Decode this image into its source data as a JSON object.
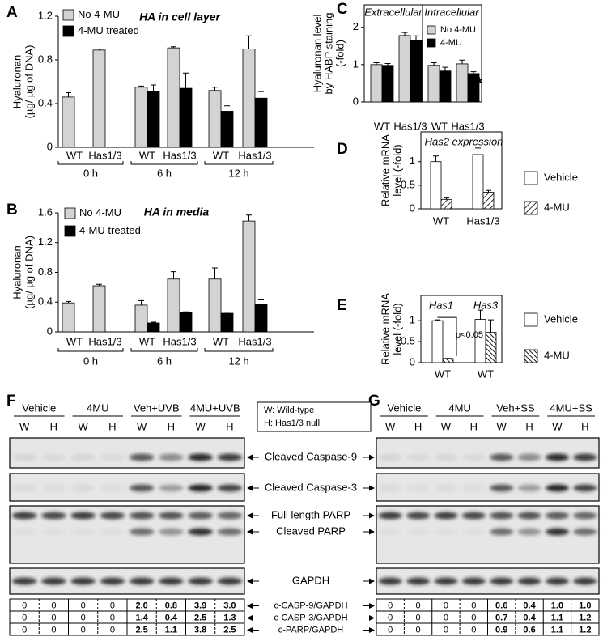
{
  "chart_data": [
    {
      "panel": "A",
      "type": "bar",
      "ylabel": [
        "Hyaluronan",
        "(µg/ µg of DNA)"
      ],
      "annotations": [
        "HA in cell layer"
      ],
      "categories": [
        "WT",
        "Has1/3",
        "WT",
        "Has1/3",
        "WT",
        "Has1/3"
      ],
      "groups": [
        "0 h",
        "6 h",
        "12 h"
      ],
      "series": [
        {
          "name": "No 4-MU",
          "color": "#d3d3d3",
          "values": [
            0.46,
            0.89,
            0.55,
            0.91,
            0.52,
            0.9
          ],
          "errors": [
            0.04,
            0.01,
            0.01,
            0.01,
            0.03,
            0.12
          ]
        },
        {
          "name": "4-MU treated",
          "color": "#000000",
          "values": [
            null,
            null,
            0.51,
            0.54,
            0.33,
            0.45
          ],
          "errors": [
            null,
            null,
            0.06,
            0.14,
            0.05,
            0.06
          ]
        }
      ],
      "ylim": [
        0,
        1.2
      ],
      "yticks": [
        0,
        0.4,
        0.8,
        1.2
      ]
    },
    {
      "panel": "B",
      "type": "bar",
      "ylabel": [
        "Hyaluronan",
        "(µg/ µg of DNA)"
      ],
      "annotations": [
        "HA in media"
      ],
      "categories": [
        "WT",
        "Has1/3",
        "WT",
        "Has1/3",
        "WT",
        "Has1/3"
      ],
      "groups": [
        "0 h",
        "6 h",
        "12 h"
      ],
      "series": [
        {
          "name": "No 4-MU",
          "color": "#d3d3d3",
          "values": [
            0.39,
            0.62,
            0.36,
            0.71,
            0.71,
            1.49
          ],
          "errors": [
            0.02,
            0.02,
            0.06,
            0.1,
            0.15,
            0.08
          ]
        },
        {
          "name": "4-MU treated",
          "color": "#000000",
          "values": [
            null,
            null,
            0.12,
            0.26,
            0.25,
            0.37
          ],
          "errors": [
            null,
            null,
            0.01,
            0.01,
            0,
            0.06
          ]
        }
      ],
      "ylim": [
        0,
        1.6
      ],
      "yticks": [
        0,
        0.4,
        0.8,
        1.2,
        1.6
      ]
    },
    {
      "panel": "C",
      "type": "bar",
      "ylabel": [
        "Hyaluronan level",
        "by HABP staining",
        "(-fold)"
      ],
      "annotations": [
        "*"
      ],
      "categories": [
        "WT",
        "Has1/3",
        "WT",
        "Has1/3"
      ],
      "sections": [
        "Extracellular",
        "Intracellular"
      ],
      "series": [
        {
          "name": "No 4-MU",
          "color": "#d3d3d3",
          "values": [
            1.0,
            1.78,
            0.98,
            1.02
          ],
          "errors": [
            0.05,
            0.08,
            0.07,
            0.1
          ]
        },
        {
          "name": "4-MU",
          "color": "#000000",
          "values": [
            0.98,
            1.65,
            0.83,
            0.76
          ],
          "errors": [
            0.05,
            0.12,
            0.1,
            0.05
          ]
        }
      ],
      "ylim": [
        0,
        2.6
      ],
      "yticks": [
        0,
        1,
        2
      ]
    },
    {
      "panel": "D",
      "type": "bar",
      "ylabel": [
        "Relative mRNA",
        "level (-fold)"
      ],
      "annotations": [
        "Has2 expression"
      ],
      "categories": [
        "WT",
        "Has1/3"
      ],
      "series": [
        {
          "name": "Vehicle",
          "color": "#ffffff",
          "values": [
            1.0,
            1.15
          ],
          "errors": [
            0.12,
            0.14
          ]
        },
        {
          "name": "4-MU",
          "color": "#ffffff",
          "pattern": "hatch",
          "values": [
            0.2,
            0.35
          ],
          "errors": [
            0.03,
            0.04
          ]
        }
      ],
      "ylim": [
        0,
        1.63
      ],
      "yticks": [
        0,
        0.5,
        1
      ]
    },
    {
      "panel": "E",
      "type": "bar",
      "ylabel": [
        "Relative mRNA",
        "level  (-fold)"
      ],
      "annotations": [
        "Has1",
        "Has3",
        "p<0.05"
      ],
      "categories": [
        "WT",
        "WT"
      ],
      "series": [
        {
          "name": "Vehicle",
          "color": "#ffffff",
          "values": [
            1.0,
            1.03
          ],
          "errors": [
            0.02,
            0.22
          ]
        },
        {
          "name": "4-MU",
          "color": "#ffffff",
          "pattern": "hatch-dense",
          "values": [
            0.1,
            0.72
          ],
          "errors": [
            0,
            0.3
          ]
        }
      ],
      "ylim": [
        0,
        1.6
      ],
      "yticks": [
        0,
        0.5,
        1
      ]
    }
  ],
  "blots": {
    "legend": [
      "W: Wild-type",
      "H: Has1/3 null"
    ],
    "bands": [
      "Cleaved Caspase-9",
      "Cleaved Caspase-3",
      "Full length PARP",
      "Cleaved PARP",
      "GAPDH"
    ],
    "ratios": [
      "c-CASP-9/GAPDH",
      "c-CASP-3/GAPDH",
      "c-PARP/GAPDH"
    ],
    "panels": [
      {
        "panel": "F",
        "treatments": [
          "Vehicle",
          "4MU",
          "Veh+UVB",
          "4MU+UVB"
        ],
        "lanes": [
          "W",
          "H",
          "W",
          "H",
          "W",
          "H",
          "W",
          "H"
        ],
        "table": [
          [
            "0",
            "0",
            "0",
            "0",
            "2.0",
            "0.8",
            "3.9",
            "3.0"
          ],
          [
            "0",
            "0",
            "0",
            "0",
            "1.4",
            "0.4",
            "2.5",
            "1.3"
          ],
          [
            "0",
            "0",
            "0",
            "0",
            "2.5",
            "1.1",
            "3.8",
            "2.5"
          ]
        ]
      },
      {
        "panel": "G",
        "treatments": [
          "Vehicle",
          "4MU",
          "Veh+SS",
          "4MU+SS"
        ],
        "lanes": [
          "W",
          "H",
          "W",
          "H",
          "W",
          "H",
          "W",
          "H"
        ],
        "table": [
          [
            "0",
            "0",
            "0",
            "0",
            "0.6",
            "0.4",
            "1.0",
            "1.0"
          ],
          [
            "0",
            "0",
            "0",
            "0",
            "0.7",
            "0.4",
            "1.1",
            "1.2"
          ],
          [
            "0",
            "0",
            "0",
            "0",
            "0.9",
            "0.6",
            "1.1",
            "1.2"
          ]
        ]
      }
    ]
  }
}
